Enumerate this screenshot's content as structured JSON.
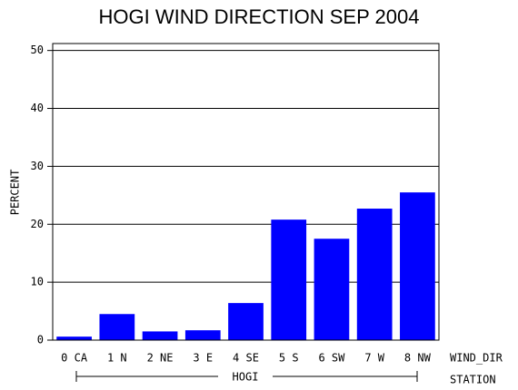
{
  "chart_data": {
    "type": "bar",
    "title": "HOGI WIND DIRECTION SEP 2004",
    "y_label": "PERCENT",
    "x_label": "WIND_DIR",
    "group_label": "STATION",
    "group": "HOGI",
    "categories": [
      "0 CA",
      "1 N",
      "2 NE",
      "3 E",
      "4 SE",
      "5 S",
      "6 SW",
      "7 W",
      "8 NW"
    ],
    "values": [
      0.6,
      4.5,
      1.5,
      1.7,
      6.4,
      20.8,
      17.5,
      22.7,
      25.5
    ],
    "color": "#0000ff",
    "ylim": [
      0,
      51.2
    ],
    "yticks": [
      0,
      10,
      20,
      30,
      40,
      50
    ],
    "grid": true
  }
}
